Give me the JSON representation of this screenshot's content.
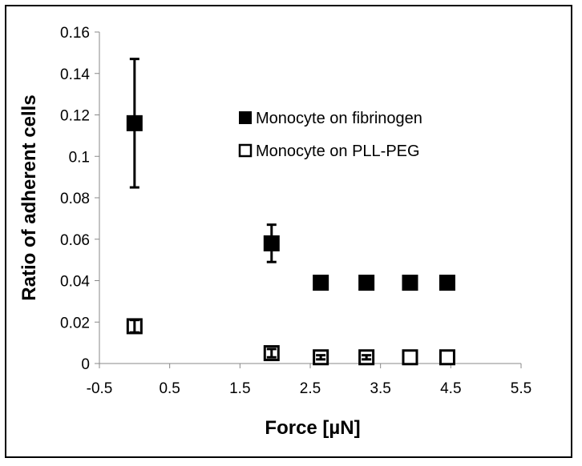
{
  "chart_data": {
    "type": "scatter",
    "title": "",
    "xlabel": "Force [µN]",
    "ylabel": "Ratio of adherent cells",
    "xlim": [
      -0.5,
      5.5
    ],
    "ylim": [
      0,
      0.16
    ],
    "x_ticks": [
      "-0.5",
      "0.5",
      "1.5",
      "2.5",
      "3.5",
      "4.5",
      "5.5"
    ],
    "y_ticks": [
      "0",
      "0.02",
      "0.04",
      "0.06",
      "0.08",
      "0.1",
      "0.12",
      "0.14",
      "0.16"
    ],
    "x_tick_values": [
      -0.5,
      0.5,
      1.5,
      2.5,
      3.5,
      4.5,
      5.5
    ],
    "y_tick_values": [
      0,
      0.02,
      0.04,
      0.06,
      0.08,
      0.1,
      0.12,
      0.14,
      0.16
    ],
    "grid": false,
    "legend_position": "top-right",
    "series": [
      {
        "name": "Monocyte on fibrinogen",
        "marker": "filled-square",
        "color": "#000000",
        "x": [
          0.0,
          1.95,
          2.65,
          3.3,
          3.92,
          4.45
        ],
        "y": [
          0.116,
          0.058,
          0.039,
          0.039,
          0.039,
          0.039
        ],
        "err": [
          0.031,
          0.009,
          0.0,
          0.0,
          0.0,
          0.0
        ]
      },
      {
        "name": "Monocyte on PLL-PEG",
        "marker": "open-square",
        "color": "#000000",
        "x": [
          0.0,
          1.95,
          2.65,
          3.3,
          3.92,
          4.45
        ],
        "y": [
          0.018,
          0.005,
          0.003,
          0.003,
          0.003,
          0.003
        ],
        "err": [
          0.003,
          0.002,
          0.001,
          0.001,
          0.0,
          0.0
        ]
      }
    ]
  }
}
